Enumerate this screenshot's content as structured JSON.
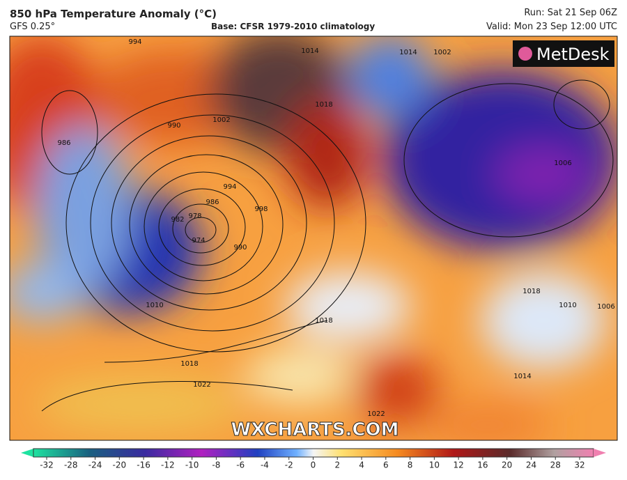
{
  "header": {
    "title": "850 hPa Temperature Anomaly (°C)",
    "model": "GFS 0.25°",
    "base": "Base: CFSR 1979-2010 climatology",
    "run": "Run: Sat 21 Sep 06Z",
    "valid": "Valid: Mon 23 Sep 12:00 UTC"
  },
  "logo": "MetDesk",
  "watermark": "WXCHARTS.COM",
  "isobar_labels": [
    "974",
    "978",
    "982",
    "986",
    "990",
    "994",
    "998",
    "1002",
    "1006",
    "1010",
    "1014",
    "1018",
    "1018",
    "1022",
    "1022",
    "990",
    "986",
    "1014",
    "1018",
    "1010",
    "1006",
    "994",
    "1002",
    "1014",
    "1018"
  ],
  "colorbar": {
    "ticks": [
      -32,
      -28,
      -24,
      -20,
      -16,
      -12,
      -10,
      -8,
      -6,
      -4,
      -2,
      0,
      2,
      4,
      6,
      8,
      10,
      12,
      16,
      20,
      24,
      28,
      32
    ]
  }
}
